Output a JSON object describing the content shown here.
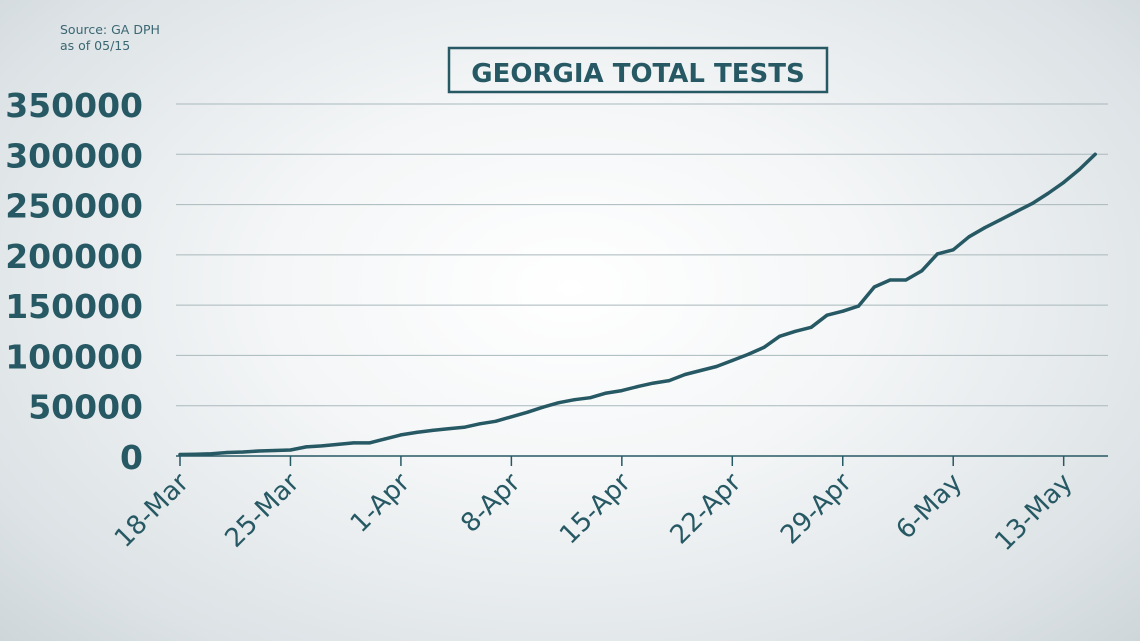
{
  "source": {
    "line1": "Source: GA DPH",
    "line2": "as of 05/15"
  },
  "colors": {
    "line": "#275964",
    "text": "#275964",
    "grid": "#a9b8bd",
    "title_border": "#275964"
  },
  "chart_data": {
    "type": "line",
    "title": "GEORGIA TOTAL TESTS",
    "xlabel": "",
    "ylabel": "",
    "ylim": [
      0,
      350000
    ],
    "yticks": [
      0,
      50000,
      100000,
      150000,
      200000,
      250000,
      300000,
      350000
    ],
    "ytick_labels": [
      "0",
      "50000",
      "100000",
      "150000",
      "200000",
      "250000",
      "300000",
      "350000"
    ],
    "xticks": [
      "18-Mar",
      "25-Mar",
      "1-Apr",
      "8-Apr",
      "15-Apr",
      "22-Apr",
      "29-Apr",
      "6-May",
      "13-May"
    ],
    "grid": true,
    "legend": "none",
    "series": [
      {
        "x": [
          "18-Mar",
          "19-Mar",
          "20-Mar",
          "21-Mar",
          "22-Mar",
          "23-Mar",
          "24-Mar",
          "25-Mar",
          "26-Mar",
          "27-Mar",
          "28-Mar",
          "29-Mar",
          "30-Mar",
          "31-Mar",
          "1-Apr",
          "2-Apr",
          "3-Apr",
          "4-Apr",
          "5-Apr",
          "6-Apr",
          "7-Apr",
          "8-Apr",
          "9-Apr",
          "10-Apr",
          "11-Apr",
          "12-Apr",
          "13-Apr",
          "14-Apr",
          "15-Apr",
          "16-Apr",
          "17-Apr",
          "18-Apr",
          "19-Apr",
          "20-Apr",
          "21-Apr",
          "22-Apr",
          "23-Apr",
          "24-Apr",
          "25-Apr",
          "26-Apr",
          "27-Apr",
          "28-Apr",
          "29-Apr",
          "30-Apr",
          "1-May",
          "2-May",
          "3-May",
          "4-May",
          "5-May",
          "6-May",
          "7-May",
          "8-May",
          "9-May",
          "10-May",
          "11-May",
          "12-May",
          "13-May",
          "14-May",
          "15-May"
        ],
        "values": [
          1500,
          1800,
          2200,
          3500,
          4000,
          5000,
          5500,
          6000,
          9000,
          10000,
          11500,
          13000,
          13000,
          17000,
          21000,
          23500,
          25500,
          27000,
          28500,
          32000,
          34500,
          39000,
          43500,
          48500,
          53000,
          56000,
          58000,
          62500,
          65000,
          69000,
          72500,
          75000,
          81000,
          85000,
          89000,
          95000,
          101000,
          108000,
          119000,
          124000,
          128000,
          140000,
          144000,
          149000,
          168000,
          175000,
          175000,
          184000,
          201000,
          205000,
          218000,
          227000,
          235000,
          243000,
          251000,
          261000,
          272000,
          285000,
          300000
        ]
      }
    ]
  }
}
